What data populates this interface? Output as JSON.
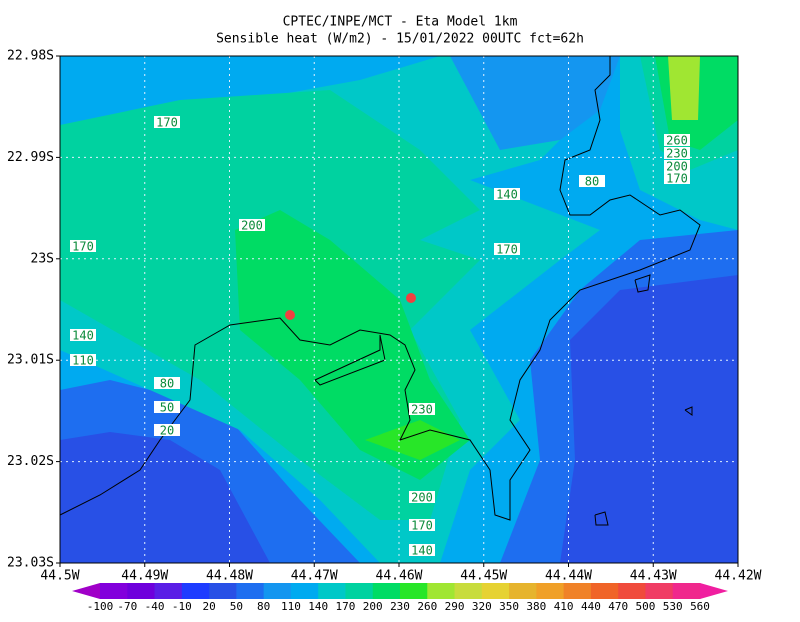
{
  "chart_data": {
    "type": "filled-contour",
    "title": "CPTEC/INPE/MCT -  Eta Model 1km",
    "subtitle": "Sensible heat (W/m2) - 15/01/2022 00UTC fct=62h",
    "xlim": [
      -44.5,
      -44.42
    ],
    "xticks": [
      {
        "value": -44.5,
        "label": "44.5W"
      },
      {
        "value": -44.49,
        "label": "44.49W"
      },
      {
        "value": -44.48,
        "label": "44.48W"
      },
      {
        "value": -44.47,
        "label": "44.47W"
      },
      {
        "value": -44.46,
        "label": "44.46W"
      },
      {
        "value": -44.45,
        "label": "44.45W"
      },
      {
        "value": -44.44,
        "label": "44.44W"
      },
      {
        "value": -44.43,
        "label": "44.43W"
      },
      {
        "value": -44.42,
        "label": "44.42W"
      }
    ],
    "ylim": [
      -23.03,
      -22.98
    ],
    "yticks": [
      {
        "value": -22.98,
        "label": "22.98S"
      },
      {
        "value": -22.99,
        "label": "22.99S"
      },
      {
        "value": -23,
        "label": "23S"
      },
      {
        "value": -23.01,
        "label": "23.01S"
      },
      {
        "value": -23.02,
        "label": "23.02S"
      },
      {
        "value": -23.03,
        "label": "23.03S"
      }
    ],
    "grid": true,
    "contour_labels": [
      170,
      200,
      170,
      140,
      110,
      80,
      50,
      20,
      140,
      170,
      80,
      260,
      230,
      200,
      170,
      230,
      200,
      170,
      140
    ],
    "levels": [
      -100,
      -70,
      -40,
      -10,
      20,
      50,
      80,
      110,
      140,
      170,
      200,
      230,
      260,
      290,
      320,
      350,
      380,
      410,
      440,
      470,
      500,
      530,
      560
    ],
    "colors": [
      "#a000c8",
      "#8200dc",
      "#6e00dc",
      "#5a1ee6",
      "#1e3cff",
      "#2850e6",
      "#1e6ef0",
      "#1496f0",
      "#00aaf0",
      "#00c8c8",
      "#00d2a0",
      "#00dc64",
      "#28e628",
      "#a0e632",
      "#c8dc3c",
      "#e6d232",
      "#e6b42d",
      "#f0a028",
      "#f08228",
      "#f06428",
      "#f04b3c",
      "#f03c64",
      "#f0288c",
      "#f01ea0"
    ]
  }
}
